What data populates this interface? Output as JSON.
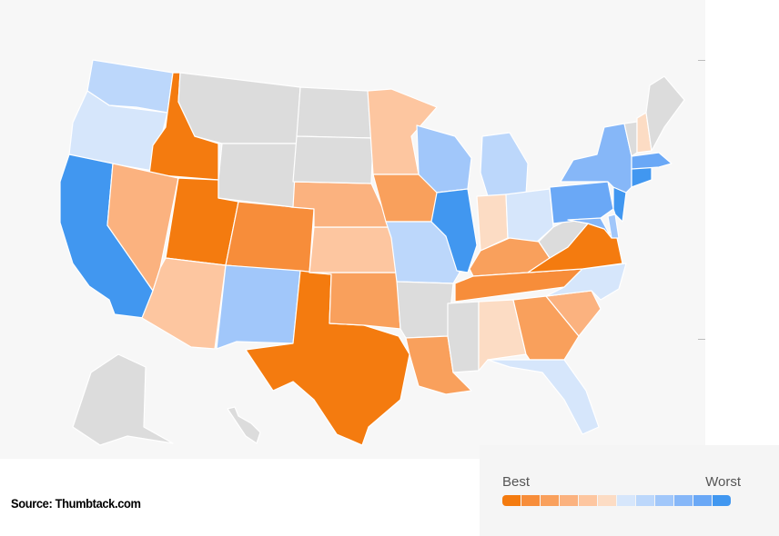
{
  "source_text": "Source: Thumbtack.com",
  "legend": {
    "best_label": "Best",
    "worst_label": "Worst",
    "scale_colors": [
      "#f47b0f",
      "#f78d3a",
      "#f9a05c",
      "#fbb27f",
      "#fdc6a0",
      "#fcdcc4",
      "#d6e6fb",
      "#bcd7fb",
      "#a1c7fa",
      "#86b7f8",
      "#6aa8f6",
      "#4197f0"
    ]
  },
  "map": {
    "no_data_color": "#dcdcdc",
    "background_color": "#f7f7f7",
    "states": [
      {
        "id": "WA",
        "rank": 8
      },
      {
        "id": "OR",
        "rank": 7
      },
      {
        "id": "CA",
        "rank": 12
      },
      {
        "id": "ID",
        "rank": 1
      },
      {
        "id": "NV",
        "rank": 4
      },
      {
        "id": "UT",
        "rank": 1
      },
      {
        "id": "AZ",
        "rank": 5
      },
      {
        "id": "CO",
        "rank": 2
      },
      {
        "id": "NM",
        "rank": 9
      },
      {
        "id": "TX",
        "rank": 1
      },
      {
        "id": "OK",
        "rank": 3
      },
      {
        "id": "KS",
        "rank": 5
      },
      {
        "id": "NE",
        "rank": 4
      },
      {
        "id": "MN",
        "rank": 5
      },
      {
        "id": "IA",
        "rank": 3
      },
      {
        "id": "MO",
        "rank": 8
      },
      {
        "id": "AR",
        "rank": 0
      },
      {
        "id": "LA",
        "rank": 3
      },
      {
        "id": "WI",
        "rank": 9
      },
      {
        "id": "IL",
        "rank": 12
      },
      {
        "id": "MI",
        "rank": 8
      },
      {
        "id": "IN",
        "rank": 6
      },
      {
        "id": "OH",
        "rank": 7
      },
      {
        "id": "KY",
        "rank": 3
      },
      {
        "id": "TN",
        "rank": 2
      },
      {
        "id": "MS",
        "rank": 0
      },
      {
        "id": "AL",
        "rank": 6
      },
      {
        "id": "GA",
        "rank": 3
      },
      {
        "id": "FL",
        "rank": 7
      },
      {
        "id": "SC",
        "rank": 4
      },
      {
        "id": "NC",
        "rank": 7
      },
      {
        "id": "VA",
        "rank": 1
      },
      {
        "id": "WV",
        "rank": 0
      },
      {
        "id": "PA",
        "rank": 11
      },
      {
        "id": "NY",
        "rank": 10
      },
      {
        "id": "VT",
        "rank": 0
      },
      {
        "id": "NH",
        "rank": 6
      },
      {
        "id": "ME",
        "rank": 0
      },
      {
        "id": "MA",
        "rank": 11
      },
      {
        "id": "CT",
        "rank": 12
      },
      {
        "id": "NJ",
        "rank": 12
      },
      {
        "id": "MD",
        "rank": 10
      },
      {
        "id": "DE",
        "rank": 9
      },
      {
        "id": "MT",
        "rank": 0
      },
      {
        "id": "WY",
        "rank": 0
      },
      {
        "id": "ND",
        "rank": 0
      },
      {
        "id": "SD",
        "rank": 0
      },
      {
        "id": "AK",
        "rank": 0
      },
      {
        "id": "HI",
        "rank": 0
      }
    ]
  }
}
